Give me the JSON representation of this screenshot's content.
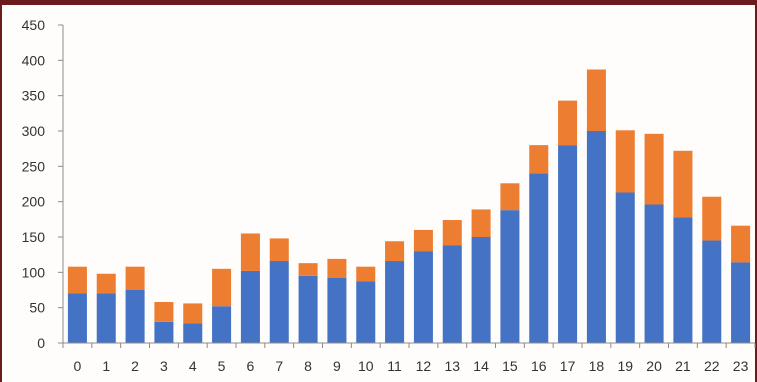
{
  "chart_data": {
    "type": "bar",
    "stacked": true,
    "categories": [
      "0",
      "1",
      "2",
      "3",
      "4",
      "5",
      "6",
      "7",
      "8",
      "9",
      "10",
      "11",
      "12",
      "13",
      "14",
      "15",
      "16",
      "17",
      "18",
      "19",
      "20",
      "21",
      "22",
      "23"
    ],
    "series": [
      {
        "color": "#4472c4",
        "values": [
          70,
          70,
          75,
          30,
          28,
          52,
          102,
          116,
          95,
          92,
          87,
          116,
          130,
          138,
          150,
          188,
          240,
          280,
          300,
          213,
          196,
          178,
          145,
          114
        ]
      },
      {
        "color": "#ed7d31",
        "values": [
          38,
          28,
          33,
          28,
          28,
          53,
          53,
          32,
          18,
          27,
          21,
          28,
          30,
          36,
          39,
          38,
          40,
          63,
          87,
          88,
          100,
          94,
          62,
          52
        ]
      }
    ],
    "yticks": [
      "0",
      "50",
      "100",
      "150",
      "200",
      "250",
      "300",
      "350",
      "400",
      "450"
    ],
    "ylim": [
      0,
      450
    ],
    "grid": false,
    "legend": "none",
    "title": "",
    "xlabel": "",
    "ylabel": ""
  }
}
